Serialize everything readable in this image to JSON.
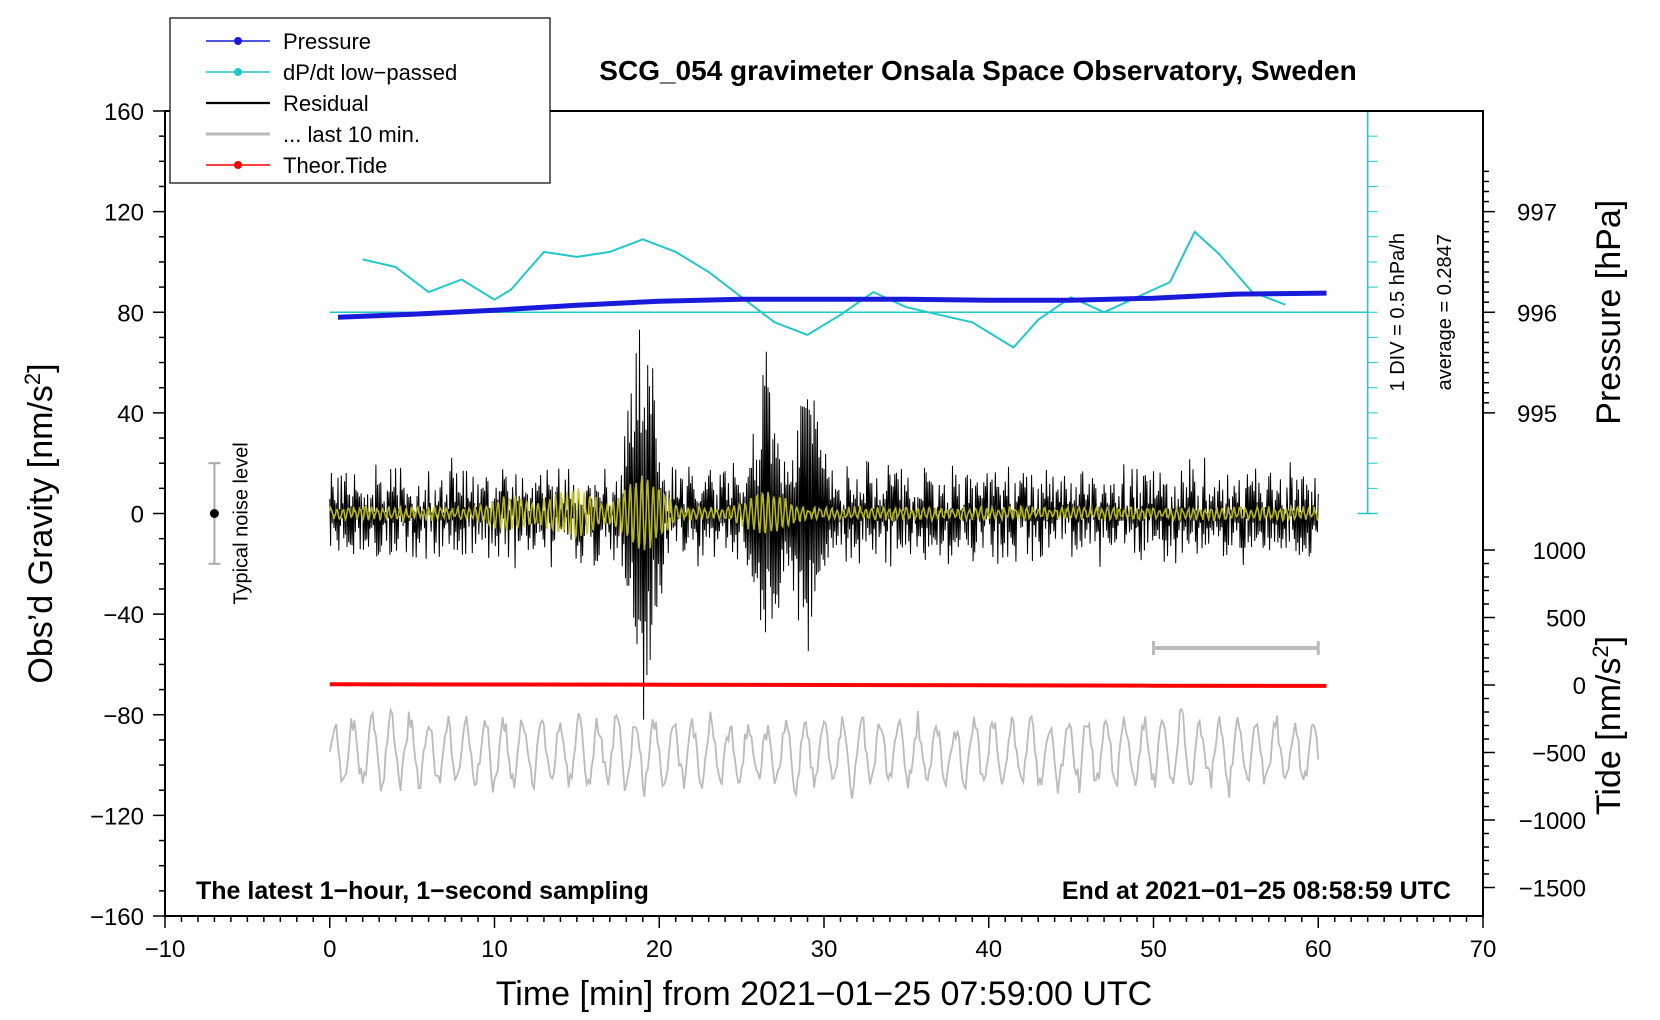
{
  "chart_data": {
    "type": "line",
    "title": "SCG_054 gravimeter Onsala Space Observatory, Sweden",
    "xlabel": "Time [min] from 2021−01−25 07:59:00 UTC",
    "ylabel_left": "Obs’d Gravity [nm/s",
    "ylabel_left_sup": "2",
    "ylabel_left_end": "]",
    "ylabel_right_pressure": "Pressure [hPa]",
    "ylabel_right_tide": "Tide [nm/s",
    "ylabel_right_tide_sup": "2",
    "ylabel_right_tide_end": "]",
    "xlim": [
      -10,
      70
    ],
    "ylim": [
      -160,
      160
    ],
    "x_ticks": [
      "−10",
      "0",
      "10",
      "20",
      "30",
      "40",
      "50",
      "60",
      "70"
    ],
    "y_ticks": [
      "160",
      "120",
      "80",
      "40",
      "0",
      "−40",
      "−80",
      "−120",
      "−160"
    ],
    "pressure_ticks": [
      {
        "label": "997",
        "value": 997
      },
      {
        "label": "996",
        "value": 996
      },
      {
        "label": "995",
        "value": 995
      }
    ],
    "tide_ticks": [
      {
        "label": "1000",
        "value": 1000
      },
      {
        "label": "500",
        "value": 500
      },
      {
        "label": "0",
        "value": 0
      },
      {
        "label": "−500",
        "value": -500
      },
      {
        "label": "−1000",
        "value": -1000
      },
      {
        "label": "−1500",
        "value": -1500
      }
    ],
    "pressure_scale_note": "1 DIV = 0.5 hPa/h",
    "average_note": "average = 0.2847",
    "noise_label": "Typical noise level",
    "noise_bar": {
      "x": -7,
      "center": 0,
      "half_range": 20
    },
    "footer_left": "The latest 1−hour, 1−second sampling",
    "footer_right": "End at 2021−01−25 08:58:59 UTC",
    "legend": [
      {
        "label": "Pressure",
        "color": "#1a1adb",
        "marker": true
      },
      {
        "label": "dP/dt low−passed",
        "color": "#20c8c8",
        "marker": true
      },
      {
        "label": "Residual",
        "color": "#000000",
        "marker": false
      },
      {
        "label": "... last 10 min.",
        "color": "#bbbbbb",
        "marker": false
      },
      {
        "label": "Theor.Tide",
        "color": "#ff0000",
        "marker": true
      }
    ],
    "colors": {
      "pressure": "#1a1adb",
      "dpdt": "#20c8c8",
      "residual": "#000000",
      "residual_filtered": "#c8c81e",
      "last10": "#bbbbbb",
      "tide": "#ff0000"
    },
    "series": [
      {
        "name": "Pressure (hPa)",
        "x": [
          0.5,
          5,
          10,
          15,
          20,
          25,
          30,
          35,
          40,
          45,
          50,
          55,
          60.5
        ],
        "values": [
          995.95,
          995.98,
          996.02,
          996.07,
          996.11,
          996.13,
          996.13,
          996.13,
          996.12,
          996.12,
          996.14,
          996.18,
          996.19
        ]
      },
      {
        "name": "dP/dt low-passed (nm/s² axis units)",
        "x": [
          2,
          4,
          6,
          8,
          10,
          11,
          13,
          15,
          17,
          19,
          21,
          23,
          25,
          27,
          29,
          31,
          33,
          35,
          37,
          39,
          41.5,
          43,
          45,
          47,
          49,
          51,
          52.5,
          54,
          56,
          58
        ],
        "values": [
          101,
          98,
          88,
          93,
          85,
          89,
          104,
          102,
          104,
          109,
          104,
          96,
          86,
          76,
          71,
          79,
          88,
          82,
          79,
          76,
          66,
          77,
          86,
          80,
          86,
          92,
          112,
          103,
          88,
          83
        ]
      },
      {
        "name": "Theor.Tide (nm/s²)",
        "x": [
          0,
          10,
          20,
          30,
          40,
          50,
          60.5
        ],
        "values": [
          5,
          4,
          2,
          0,
          -2,
          -5,
          -7
        ]
      }
    ],
    "residual_events": [
      {
        "x": 19,
        "max": 79,
        "min": -79
      },
      {
        "x": 26.5,
        "max": 50,
        "min": -58
      },
      {
        "x": 29,
        "max": 45,
        "min": -42
      }
    ],
    "residual_noise_amplitude": 20,
    "last10_window": [
      50,
      60
    ],
    "last10_amplitude": 600
  }
}
